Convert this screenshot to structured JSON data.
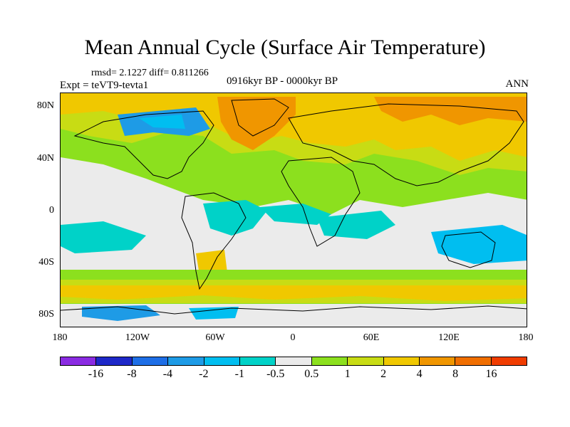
{
  "title": "Mean Annual Cycle (Surface Air Temperature)",
  "stats_text": "rmsd= 2.1227 diff= 0.811266",
  "experiment_text": "Expt = teVT9-tevta1",
  "period_text": "0916kyr BP - 0000kyr BP",
  "season": "ANN",
  "map": {
    "projection": "cylindrical equidistant",
    "lat_ticks": [
      "80N",
      "40N",
      "0",
      "40S",
      "80S"
    ],
    "lon_ticks": [
      "180",
      "120W",
      "60W",
      "0",
      "60E",
      "120E",
      "180"
    ],
    "background_color": "#ebebeb",
    "coastline_color": "#000000"
  },
  "colorbar": {
    "colors": [
      "#8a2be2",
      "#1e28c8",
      "#1e6ee6",
      "#1e9be6",
      "#00bef0",
      "#00d2c8",
      "#ebebeb",
      "#8ce01e",
      "#c8dc14",
      "#f0c800",
      "#f09600",
      "#f06e00",
      "#f03c00"
    ],
    "labels": [
      "-16",
      "-8",
      "-4",
      "-2",
      "-1",
      "-0.5",
      "0.5",
      "1",
      "2",
      "4",
      "8",
      "16"
    ]
  }
}
